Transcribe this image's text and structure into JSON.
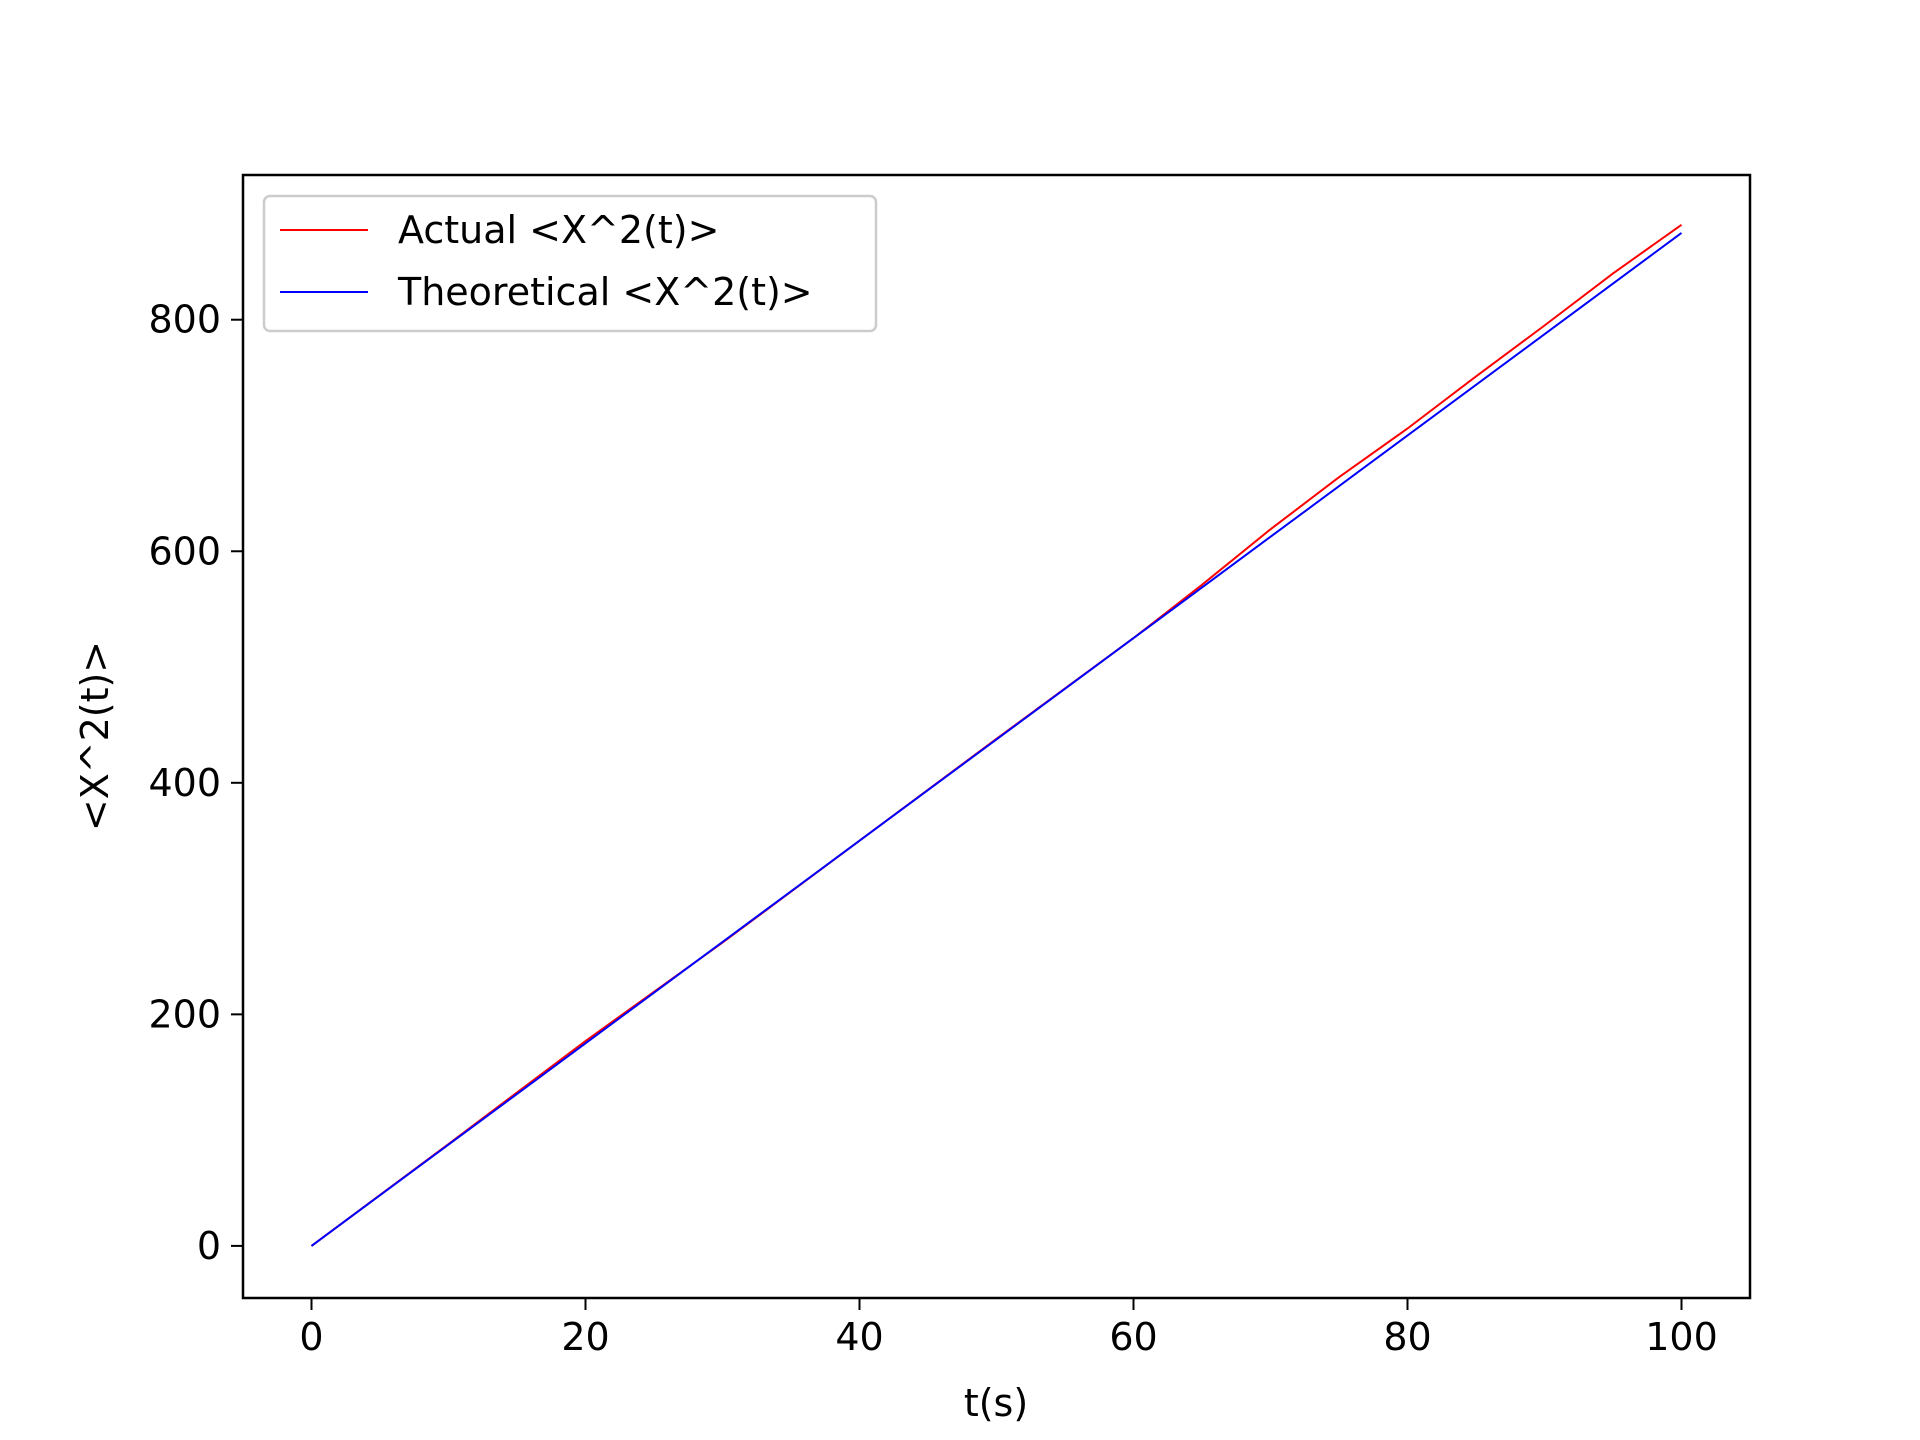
{
  "chart_data": {
    "type": "line",
    "title": "",
    "xlabel": "t(s)",
    "ylabel": "<X^2(t)>",
    "xlim": [
      -5,
      105
    ],
    "ylim": [
      -45,
      925
    ],
    "xticks": [
      0,
      20,
      40,
      60,
      80,
      100
    ],
    "yticks": [
      0,
      200,
      400,
      600,
      800
    ],
    "grid": false,
    "legend_position": "upper-left",
    "series": [
      {
        "name": "Actual <X^2(t)>",
        "color": "#ff0000",
        "x": [
          0,
          10,
          20,
          30,
          40,
          50,
          60,
          65,
          70,
          75,
          80,
          85,
          90,
          95,
          100
        ],
        "y": [
          0,
          88,
          177,
          262,
          350,
          438,
          525,
          571,
          619,
          664,
          706,
          751,
          795,
          840,
          882
        ]
      },
      {
        "name": "Theoretical <X^2(t)>",
        "color": "#0000ff",
        "x": [
          0,
          100
        ],
        "y": [
          0,
          875
        ]
      }
    ]
  }
}
